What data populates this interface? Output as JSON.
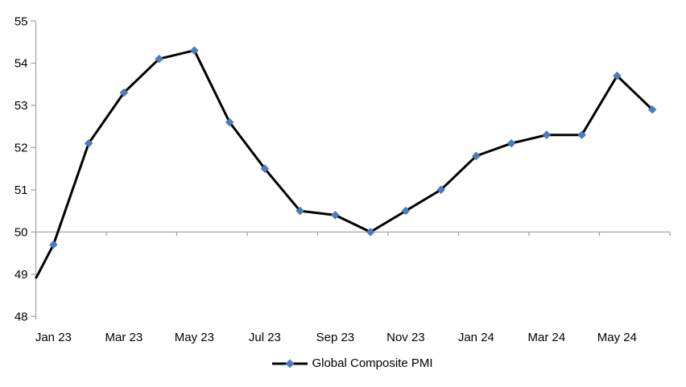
{
  "chart_data": {
    "type": "line",
    "title": "",
    "xlabel": "",
    "ylabel": "",
    "categories": [
      "Jan 23",
      "Feb 23",
      "Mar 23",
      "Apr 23",
      "May 23",
      "Jun 23",
      "Jul 23",
      "Aug 23",
      "Sep 23",
      "Oct 23",
      "Nov 23",
      "Dec 23",
      "Jan 24",
      "Feb 24",
      "Mar 24",
      "Apr 24",
      "May 24",
      "Jun 24"
    ],
    "series": [
      {
        "name": "Global Composite PMI",
        "values": [
          49.7,
          52.1,
          53.3,
          54.1,
          54.3,
          52.6,
          51.5,
          50.5,
          50.4,
          50.0,
          50.5,
          51.0,
          51.8,
          52.1,
          52.3,
          52.3,
          53.7,
          52.9
        ],
        "line_color": "#000000",
        "marker": "diamond",
        "marker_color": "#4A7EBB"
      }
    ],
    "clipped_entry_value_at_left_edge": 48.9,
    "x_tick_labels": [
      "Jan 23",
      "Mar 23",
      "May 23",
      "Jul 23",
      "Sep 23",
      "Nov 23",
      "Jan 24",
      "Mar 24",
      "May 24"
    ],
    "x_label_every_n_categories": 2,
    "y_ticks": [
      "48",
      "49",
      "50",
      "51",
      "52",
      "53",
      "54",
      "55"
    ],
    "ylim": [
      48,
      55
    ],
    "category_axis_crosses_at": 50,
    "grid": "off",
    "legend_position": "bottom-center"
  },
  "colors": {
    "background": "#ffffff",
    "axis": "#a6a6a6",
    "text": "#000000",
    "series_line": "#000000",
    "marker_fill": "#4A7EBB",
    "marker_stroke": "#38679B"
  }
}
